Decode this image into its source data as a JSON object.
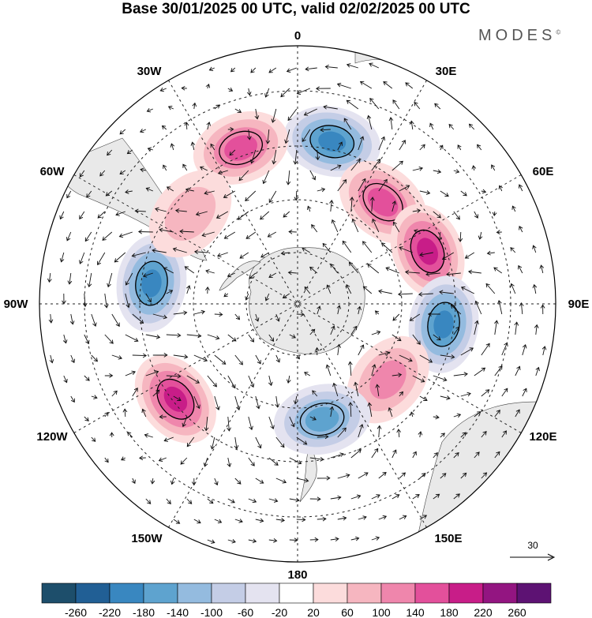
{
  "title": "Base 30/01/2025 00 UTC, valid 02/02/2025 00 UTC",
  "logo": "MODES",
  "logo_mark": "©",
  "map": {
    "projection": "south polar stereographic",
    "longitude_labels": [
      "0",
      "30E",
      "60E",
      "90E",
      "120E",
      "150E",
      "180",
      "150W",
      "120W",
      "90W",
      "60W",
      "30W"
    ]
  },
  "vector_reference": {
    "value": "30"
  },
  "colorbar": {
    "tick_labels": [
      "-260",
      "-220",
      "-180",
      "-140",
      "-100",
      "-60",
      "-20",
      "20",
      "60",
      "100",
      "140",
      "180",
      "220",
      "260"
    ],
    "colors": [
      "#1d4e6b",
      "#215f95",
      "#3987c0",
      "#5ea3cf",
      "#94bbdf",
      "#c4cde6",
      "#e4e3f0",
      "#ffffff",
      "#fcdcdc",
      "#f6b6c0",
      "#ef86ac",
      "#e3509b",
      "#c81d88",
      "#931581",
      "#5d1273"
    ]
  },
  "chart_data": {
    "type": "heatmap",
    "title": "Base 30/01/2025 00 UTC, valid 02/02/2025 00 UTC",
    "anomaly_centers": [
      {
        "lon_deg": 12,
        "lat_deg": -45,
        "value": -190
      },
      {
        "lon_deg": 40,
        "lat_deg": -54,
        "value": 140
      },
      {
        "lon_deg": 68,
        "lat_deg": -52,
        "value": 180
      },
      {
        "lon_deg": 98,
        "lat_deg": -50,
        "value": -200
      },
      {
        "lon_deg": 130,
        "lat_deg": -58,
        "value": 120
      },
      {
        "lon_deg": 168,
        "lat_deg": -58,
        "value": -140
      },
      {
        "lon_deg": 232,
        "lat_deg": -48,
        "value": 180
      },
      {
        "lon_deg": 278,
        "lat_deg": -50,
        "value": -180
      },
      {
        "lon_deg": 340,
        "lat_deg": -45,
        "value": 140
      },
      {
        "lon_deg": 310,
        "lat_deg": -52,
        "value": 80
      }
    ]
  }
}
